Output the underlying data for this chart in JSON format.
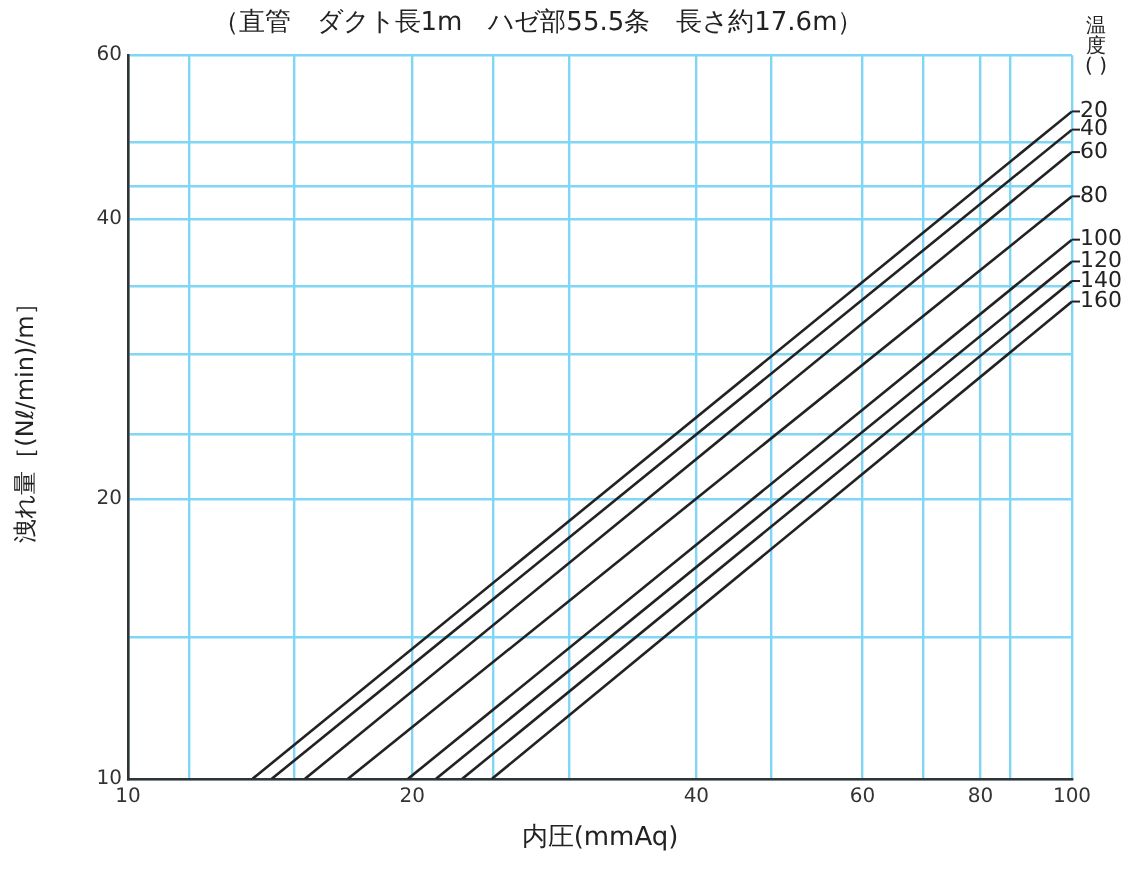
{
  "chart_data": {
    "type": "line",
    "title": "（直管　ダクト長1m　ハゼ部55.5条　長さ約17.6m）",
    "xlabel": "内圧(mmAq)",
    "ylabel": "洩れ量［(Nℓ/min)/m］",
    "legend_title": "温度( )",
    "log": "xy",
    "grid": true,
    "legend": "right",
    "marker": "none",
    "line_style": "solid",
    "xlim": [
      10,
      100
    ],
    "ylim": [
      10,
      60
    ],
    "xticks": [
      10,
      {
        "value": 11.6,
        "label": null
      },
      {
        "value": 15,
        "label": null
      },
      20,
      {
        "value": 24.4,
        "label": null
      },
      {
        "value": 29.3,
        "label": null
      },
      40,
      {
        "value": 48,
        "label": null
      },
      60,
      {
        "value": 69.5,
        "label": null
      },
      80,
      {
        "value": 86,
        "label": null
      },
      100
    ],
    "yticks": [
      10,
      {
        "value": 14.2,
        "label": null
      },
      20,
      {
        "value": 23.5,
        "label": null
      },
      {
        "value": 28.6,
        "label": null
      },
      {
        "value": 33.9,
        "label": null
      },
      40,
      {
        "value": 43.4,
        "label": null
      },
      {
        "value": 48.4,
        "label": null
      },
      60
    ],
    "series": [
      {
        "name": "20",
        "color": "#222222",
        "x": [
          13.55,
          100
        ],
        "values": [
          10,
          52.2
        ]
      },
      {
        "name": "40",
        "color": "#222222",
        "x": [
          14.2,
          100
        ],
        "values": [
          10,
          49.9
        ]
      },
      {
        "name": "60",
        "color": "#222222",
        "x": [
          15.4,
          100
        ],
        "values": [
          10,
          47.2
        ]
      },
      {
        "name": "80",
        "color": "#222222",
        "x": [
          17.1,
          100
        ],
        "values": [
          10,
          42.3
        ]
      },
      {
        "name": "100",
        "color": "#222222",
        "x": [
          19.8,
          100
        ],
        "values": [
          10,
          38
        ]
      },
      {
        "name": "120",
        "color": "#222222",
        "x": [
          21.2,
          100
        ],
        "values": [
          10,
          36
        ]
      },
      {
        "name": "140",
        "color": "#222222",
        "x": [
          22.6,
          100
        ],
        "values": [
          10,
          34.3
        ]
      },
      {
        "name": "160",
        "color": "#222222",
        "x": [
          24.3,
          100
        ],
        "values": [
          10,
          32.6
        ]
      }
    ]
  }
}
